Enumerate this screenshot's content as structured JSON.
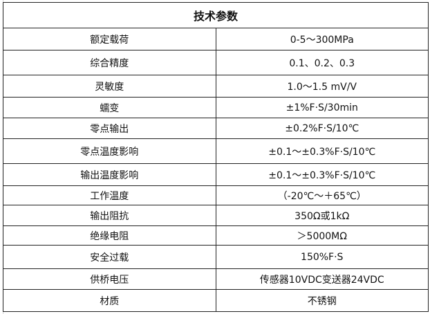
{
  "title": "技术参数",
  "rows": [
    {
      "label": "额定载荷",
      "value": "0-5～300MPa"
    },
    {
      "label": "综合精度",
      "value": "0.1、0.2、0.3"
    },
    {
      "label": "灵敏度",
      "value": "1.0～1.5 mV/V"
    },
    {
      "label": "蠕变",
      "value": "±1%F·S/30min"
    },
    {
      "label": "零点输出",
      "value": "±0.2%F·S/10℃"
    },
    {
      "label": "零点温度影响",
      "value": "±0.1～±0.3%F·S/10℃"
    },
    {
      "label": "输出温度影响",
      "value": "±0.1～±0.3%F·S/10℃"
    },
    {
      "label": "工作温度",
      "value": "（-20℃～＋65℃）"
    },
    {
      "label": "输出阻抗",
      "value": "350Ω或1kΩ"
    },
    {
      "label": "绝缘电阻",
      "value": "＞5000MΩ"
    },
    {
      "label": "安全过载",
      "value": "150%F·S"
    },
    {
      "label": "供桥电压",
      "value": "传感器10VDC变送器24VDC"
    },
    {
      "label": "材质",
      "value": "不锈钢"
    }
  ]
}
